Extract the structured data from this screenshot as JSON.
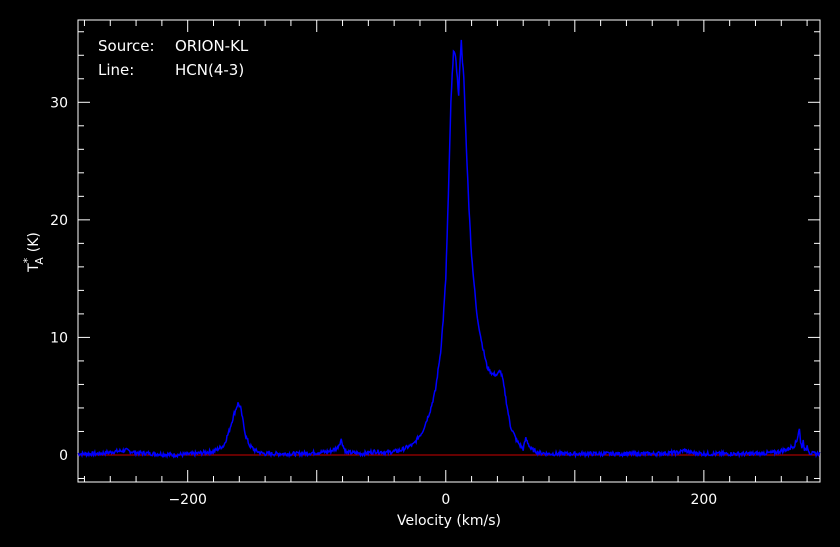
{
  "colors": {
    "background": "#000000",
    "axes": "#ffffff",
    "spectrum": "#0000ff",
    "baseline": "#cc0000"
  },
  "chart_data": {
    "type": "line",
    "info": {
      "source_label": "Source:",
      "source_value": "ORION-KL",
      "line_label": "Line:",
      "line_value": "HCN(4-3)"
    },
    "xlabel": "Velocity (km/s)",
    "ylabel_main": "T",
    "ylabel_sup": "*",
    "ylabel_sub": "A",
    "ylabel_unit": "(K)",
    "xlim": [
      -285,
      290
    ],
    "ylim": [
      -2.3,
      37
    ],
    "xticks_major": [
      -200,
      0,
      200
    ],
    "xtick_labels": [
      "−200",
      "0",
      "200"
    ],
    "yticks_major": [
      0,
      10,
      20,
      30
    ],
    "ytick_labels": [
      "0",
      "10",
      "20",
      "30"
    ],
    "baseline_y": 0,
    "series": [
      {
        "x": [
          -285,
          -270,
          -255,
          -248,
          -240,
          -225,
          -210,
          -195,
          -180,
          -172,
          -168,
          -164,
          -161,
          -159,
          -157,
          -155,
          -152,
          -148,
          -144,
          -140,
          -130,
          -115,
          -100,
          -90,
          -84,
          -81,
          -79,
          -77,
          -73,
          -65,
          -55,
          -45,
          -35,
          -25,
          -18,
          -12,
          -8,
          -4,
          -2,
          0,
          2,
          4,
          6,
          8,
          10,
          11,
          12,
          13,
          14,
          16,
          18,
          20,
          24,
          28,
          32,
          36,
          40,
          42,
          44,
          46,
          48,
          50,
          55,
          60,
          62,
          66,
          72,
          80,
          100,
          130,
          160,
          180,
          185,
          190,
          200,
          220,
          240,
          255,
          265,
          270,
          272,
          274,
          275,
          276,
          277,
          278,
          279,
          280,
          282,
          285,
          290
        ],
        "y": [
          0.1,
          0.1,
          0.3,
          0.4,
          0.2,
          0.1,
          0.0,
          0.1,
          0.3,
          0.8,
          2.0,
          3.5,
          4.4,
          4.0,
          2.8,
          1.6,
          0.8,
          0.4,
          0.2,
          0.1,
          0.1,
          0.1,
          0.2,
          0.3,
          0.6,
          1.3,
          0.6,
          0.2,
          0.2,
          0.1,
          0.3,
          0.2,
          0.4,
          0.9,
          2.0,
          3.8,
          5.5,
          8.8,
          11.5,
          15,
          22,
          30,
          34.5,
          33.5,
          30.5,
          33.5,
          35.2,
          33.5,
          32,
          26,
          21,
          17,
          12,
          9.5,
          7.5,
          6.9,
          6.8,
          7.2,
          6.5,
          5.2,
          3.8,
          2.5,
          1.2,
          0.5,
          1.4,
          0.5,
          0.2,
          0.1,
          0.1,
          0.1,
          0.1,
          0.2,
          0.4,
          0.2,
          0.1,
          0.1,
          0.1,
          0.2,
          0.5,
          0.8,
          1.2,
          2.3,
          1.0,
          0.7,
          1.2,
          0.5,
          0.3,
          0.8,
          0.2,
          0.1,
          0.1
        ]
      }
    ]
  }
}
